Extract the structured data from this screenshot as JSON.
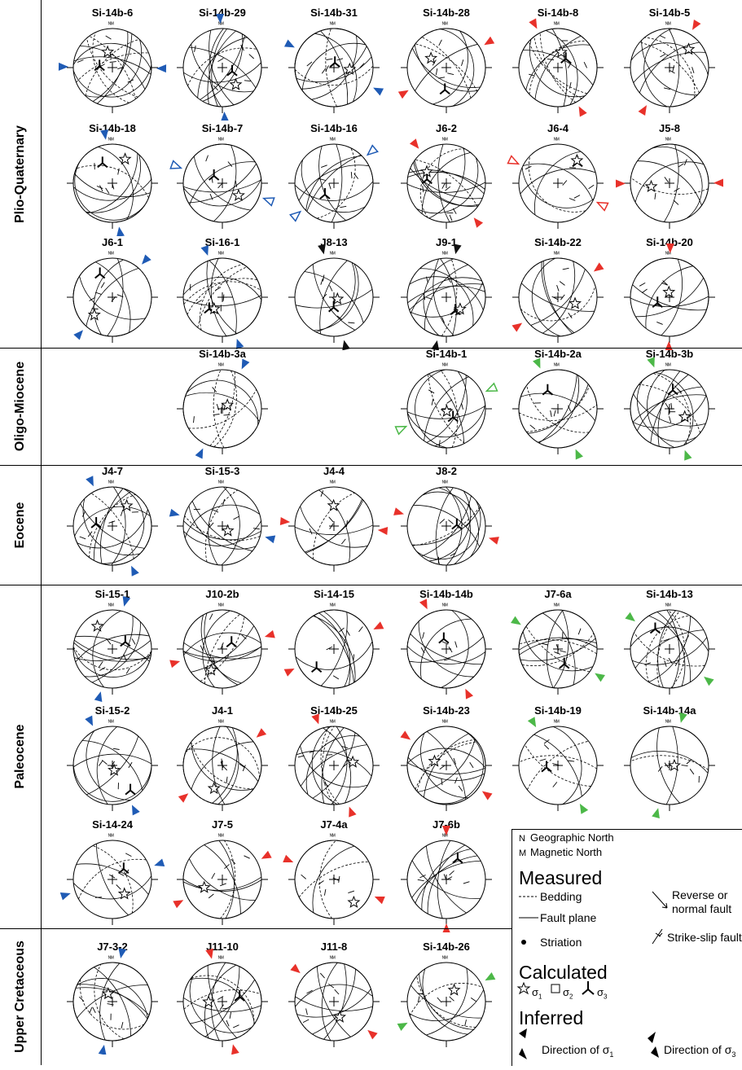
{
  "sections": [
    {
      "label": "Plio-Quaternary",
      "rows": [
        [
          {
            "label": "Si-14b-6",
            "col": 0,
            "color": "#1f5bb5",
            "sym": [
              [
                "sigma1",
                1
              ],
              [
                "sigma3",
                1
              ]
            ]
          },
          {
            "label": "Si-14b-29",
            "col": 1,
            "color": "#1f5bb5",
            "sym": [
              [
                "sigma3",
                1
              ],
              [
                "sigma1",
                1
              ]
            ]
          },
          {
            "label": "Si-14b-31",
            "col": 2,
            "color": "#1f5bb5",
            "sym": [
              [
                "sigma3",
                1
              ],
              [
                "sigma1",
                1
              ]
            ]
          },
          {
            "label": "Si-14b-28",
            "col": 3,
            "color": "#e8312a",
            "sym": [
              [
                "sigma3",
                1
              ],
              [
                "sigma1",
                1
              ]
            ]
          },
          {
            "label": "Si-14b-8",
            "col": 4,
            "color": "#e8312a",
            "sym": [
              [
                "sigma3",
                1
              ],
              [
                "sigma1",
                1
              ]
            ]
          },
          {
            "label": "Si-14b-5",
            "col": 5,
            "color": "#e8312a",
            "sym": [
              [
                "sigma1",
                1
              ]
            ]
          }
        ],
        [
          {
            "label": "Si-14b-18",
            "col": 0,
            "color": "#1f5bb5",
            "sym": [
              [
                "sigma3",
                1
              ],
              [
                "sigma1",
                1
              ]
            ]
          },
          {
            "label": "Si-14b-7",
            "col": 1,
            "color": "#1f5bb5",
            "hollow": true,
            "sym": [
              [
                "sigma3",
                1
              ],
              [
                "sigma1",
                1
              ]
            ]
          },
          {
            "label": "Si-14b-16",
            "col": 2,
            "color": "#1f5bb5",
            "hollow": true,
            "sym": [
              [
                "sigma3",
                1
              ]
            ]
          },
          {
            "label": "J6-2",
            "col": 3,
            "color": "#e8312a",
            "sym": [
              [
                "sigma3",
                1
              ],
              [
                "sigma1",
                1
              ]
            ]
          },
          {
            "label": "J6-4",
            "col": 4,
            "color": "#e8312a",
            "hollow": true,
            "sym": [
              [
                "sigma3",
                1
              ],
              [
                "sigma1",
                1
              ]
            ]
          },
          {
            "label": "J5-8",
            "col": 5,
            "color": "#e8312a",
            "sym": [
              [
                "sigma1",
                1
              ]
            ]
          }
        ],
        [
          {
            "label": "J6-1",
            "col": 0,
            "color": "#1f5bb5",
            "sym": [
              [
                "sigma3",
                1
              ],
              [
                "sigma1",
                1
              ]
            ]
          },
          {
            "label": "Si-16-1",
            "col": 1,
            "color": "#1f5bb5",
            "sym": [
              [
                "sigma3",
                1
              ],
              [
                "sigma1",
                1
              ]
            ]
          },
          {
            "label": "J8-13",
            "col": 2,
            "color": "#111111",
            "sym": [
              [
                "sigma3",
                1
              ],
              [
                "sigma1",
                1
              ]
            ]
          },
          {
            "label": "J9-1",
            "col": 3,
            "color": "#111111",
            "sym": [
              [
                "sigma3",
                1
              ],
              [
                "sigma1",
                1
              ]
            ]
          },
          {
            "label": "Si-14b-22",
            "col": 4,
            "color": "#e8312a",
            "sym": [
              [
                "sigma1",
                1
              ]
            ]
          },
          {
            "label": "Si-14b-20",
            "col": 5,
            "color": "#e8312a",
            "sym": [
              [
                "sigma3",
                1
              ],
              [
                "sigma1",
                1
              ]
            ]
          }
        ]
      ]
    },
    {
      "label": "Oligo-Miocene",
      "rows": [
        [
          {
            "label": "Si-14b-3a",
            "col": 1,
            "color": "#1f5bb5",
            "sym": [
              [
                "sigma1",
                1
              ]
            ]
          },
          {
            "label": "Si-14b-1",
            "col": 3,
            "color": "#4cb848",
            "hollow": true,
            "sym": [
              [
                "sigma3",
                1
              ],
              [
                "sigma1",
                1
              ]
            ]
          },
          {
            "label": "Si-14b-2a",
            "col": 4,
            "color": "#4cb848",
            "sym": [
              [
                "sigma3",
                1
              ]
            ]
          },
          {
            "label": "Si-14b-3b",
            "col": 5,
            "color": "#4cb848",
            "sym": [
              [
                "sigma3",
                1
              ],
              [
                "sigma1",
                1
              ]
            ]
          }
        ]
      ]
    },
    {
      "label": "Eocene",
      "rows": [
        [
          {
            "label": "J4-7",
            "col": 0,
            "color": "#1f5bb5",
            "sym": [
              [
                "sigma3",
                1
              ],
              [
                "sigma1",
                1
              ]
            ]
          },
          {
            "label": "Si-15-3",
            "col": 1,
            "color": "#1f5bb5",
            "sym": [
              [
                "sigma1",
                1
              ]
            ]
          },
          {
            "label": "J4-4",
            "col": 2,
            "color": "#e8312a",
            "sym": [
              [
                "sigma1",
                1
              ]
            ]
          },
          {
            "label": "J8-2",
            "col": 3,
            "color": "#e8312a",
            "sym": [
              [
                "sigma3",
                1
              ]
            ]
          }
        ]
      ]
    },
    {
      "label": "Paleocene",
      "rows": [
        [
          {
            "label": "Si-15-1",
            "col": 0,
            "color": "#1f5bb5",
            "sym": [
              [
                "sigma3",
                1
              ],
              [
                "sigma1",
                1
              ]
            ]
          },
          {
            "label": "J10-2b",
            "col": 1,
            "color": "#e8312a",
            "sym": [
              [
                "sigma3",
                1
              ],
              [
                "sigma1",
                1
              ]
            ]
          },
          {
            "label": "Si-14-15",
            "col": 2,
            "color": "#e8312a",
            "sym": [
              [
                "sigma3",
                1
              ]
            ]
          },
          {
            "label": "Si-14b-14b",
            "col": 3,
            "color": "#e8312a",
            "sym": [
              [
                "sigma3",
                1
              ]
            ]
          },
          {
            "label": "J7-6a",
            "col": 4,
            "color": "#4cb848",
            "sym": [
              [
                "sigma3",
                1
              ]
            ]
          },
          {
            "label": "Si-14b-13",
            "col": 5,
            "color": "#4cb848",
            "sym": [
              [
                "sigma3",
                1
              ]
            ]
          }
        ],
        [
          {
            "label": "Si-15-2",
            "col": 0,
            "color": "#1f5bb5",
            "sym": [
              [
                "sigma3",
                1
              ],
              [
                "sigma1",
                1
              ]
            ]
          },
          {
            "label": "J4-1",
            "col": 1,
            "color": "#e8312a",
            "sym": [
              [
                "sigma1",
                1
              ]
            ]
          },
          {
            "label": "Si-14b-25",
            "col": 2,
            "color": "#e8312a",
            "sym": [
              [
                "sigma1",
                1
              ]
            ]
          },
          {
            "label": "Si-14b-23",
            "col": 3,
            "color": "#e8312a",
            "sym": [
              [
                "sigma1",
                1
              ]
            ]
          },
          {
            "label": "Si-14b-19",
            "col": 4,
            "color": "#4cb848",
            "sym": [
              [
                "sigma3",
                1
              ]
            ]
          },
          {
            "label": "Si-14b-14a",
            "col": 5,
            "color": "#4cb848",
            "sym": [
              [
                "sigma1",
                1
              ]
            ]
          }
        ],
        [
          {
            "label": "Si-14-24",
            "col": 0,
            "color": "#1f5bb5",
            "sym": [
              [
                "sigma3",
                1
              ],
              [
                "sigma1",
                1
              ]
            ]
          },
          {
            "label": "J7-5",
            "col": 1,
            "color": "#e8312a",
            "sym": [
              [
                "sigma1",
                1
              ]
            ]
          },
          {
            "label": "J7-4a",
            "col": 2,
            "color": "#e8312a",
            "sym": [
              [
                "sigma1",
                1
              ]
            ]
          },
          {
            "label": "J7-6b",
            "col": 3,
            "color": "#e8312a",
            "sym": [
              [
                "sigma3",
                1
              ]
            ]
          }
        ]
      ]
    },
    {
      "label": "Upper Cretaceous",
      "rows": [
        [
          {
            "label": "J7-3-2",
            "col": 0,
            "color": "#1f5bb5",
            "sym": [
              [
                "sigma1",
                1
              ]
            ]
          },
          {
            "label": "J11-10",
            "col": 1,
            "color": "#e8312a",
            "sym": [
              [
                "sigma3",
                1
              ],
              [
                "sigma1",
                1
              ]
            ]
          },
          {
            "label": "J11-8",
            "col": 2,
            "color": "#e8312a",
            "sym": [
              [
                "sigma1",
                1
              ]
            ]
          },
          {
            "label": "Si-14b-26",
            "col": 3,
            "color": "#4cb848",
            "sym": [
              [
                "sigma1",
                1
              ]
            ]
          }
        ]
      ]
    }
  ],
  "legend": {
    "geo_north": "Geographic North",
    "mag_north": "Magnetic North",
    "measured": "Measured",
    "bedding": "Bedding",
    "fault_plane": "Fault plane",
    "striation": "Striation",
    "reverse_normal": "Reverse or",
    "reverse_normal2": "normal fault",
    "strike_slip": "Strike-slip fault",
    "calculated": "Calculated",
    "sigma1": "σ",
    "sigma1_sub": "1",
    "sigma2": "σ",
    "sigma2_sub": "2",
    "sigma3": "σ",
    "sigma3_sub": "3",
    "inferred": "Inferred",
    "dir_s1": "Direction of σ",
    "dir_s1_sub": "1",
    "dir_s3": "Direction of σ",
    "dir_s3_sub": "3"
  }
}
